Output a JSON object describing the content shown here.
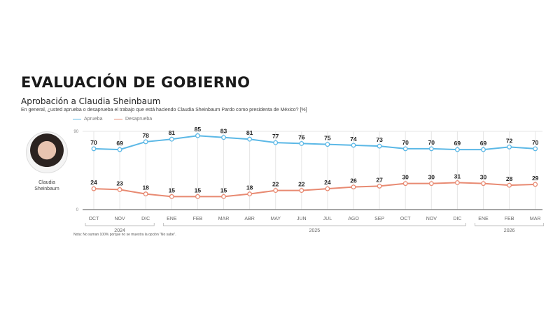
{
  "header": {
    "title": "EVALUACIÓN DE GOBIERNO",
    "subtitle": "Aprobación a Claudia Sheinbaum",
    "question": "En general, ¿usted aprueba o desaprueba el trabajo que está haciendo Claudia Sheinbaum Pardo como presidenta de México?  [%]"
  },
  "person": {
    "first": "Claudia",
    "last": "Sheinbaum"
  },
  "note": "Nota: No suman 100% porque no se muestra la opción \"No sabe\".",
  "chart_data": {
    "type": "line",
    "categories": [
      "OCT",
      "NOV",
      "DIC",
      "ENE",
      "FEB",
      "MAR",
      "ABR",
      "MAY",
      "JUN",
      "JUL",
      "AGO",
      "SEP",
      "OCT",
      "NOV",
      "DIC",
      "ENE",
      "FEB",
      "MAR"
    ],
    "years": [
      {
        "label": "2024",
        "from": 0,
        "to": 2
      },
      {
        "label": "2025",
        "from": 3,
        "to": 14
      },
      {
        "label": "2026",
        "from": 15,
        "to": 17
      }
    ],
    "ylim": [
      0,
      90
    ],
    "yticks": [
      0,
      90
    ],
    "series": [
      {
        "name": "Aprueba",
        "color": "#5bb8e6",
        "values": [
          70,
          69,
          78,
          81,
          85,
          83,
          81,
          77,
          76,
          75,
          74,
          73,
          70,
          70,
          69,
          69,
          72,
          70
        ]
      },
      {
        "name": "Desaprueba",
        "color": "#e88a72",
        "values": [
          24,
          23,
          18,
          15,
          15,
          15,
          18,
          22,
          22,
          24,
          26,
          27,
          30,
          30,
          31,
          30,
          28,
          29
        ]
      }
    ],
    "legend": "top-left"
  }
}
